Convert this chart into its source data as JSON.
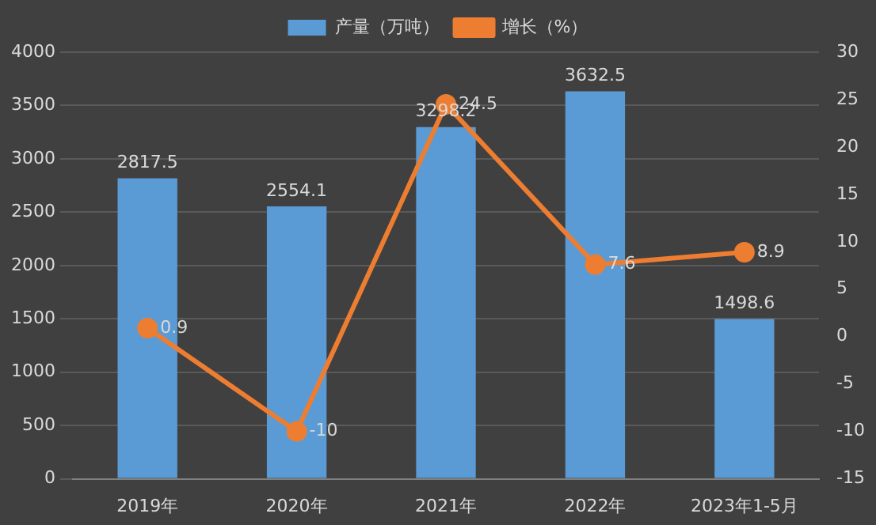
{
  "chart_data": {
    "type": "bar",
    "categories": [
      "2019年",
      "2020年",
      "2021年",
      "2022年",
      "2023年1-5月"
    ],
    "series": [
      {
        "name": "产量（万吨）",
        "color": "#5b9bd5",
        "values": [
          2817.5,
          2554.1,
          3298.2,
          3632.5,
          1498.6
        ]
      },
      {
        "name": "增长（%）",
        "type": "line",
        "axis": "y2",
        "color": "#ed7d31",
        "values": [
          0.9,
          -10,
          24.5,
          7.6,
          8.9
        ]
      }
    ],
    "ylim": [
      0,
      4000
    ],
    "yticks": [
      0,
      500,
      1000,
      1500,
      2000,
      2500,
      3000,
      3500,
      4000
    ],
    "y2lim": [
      -15,
      30
    ],
    "y2ticks": [
      -15,
      -10,
      -5,
      0,
      5,
      10,
      15,
      20,
      25,
      30
    ],
    "grid": "y",
    "legend": "top",
    "marker": "circle",
    "data_labels": true
  }
}
